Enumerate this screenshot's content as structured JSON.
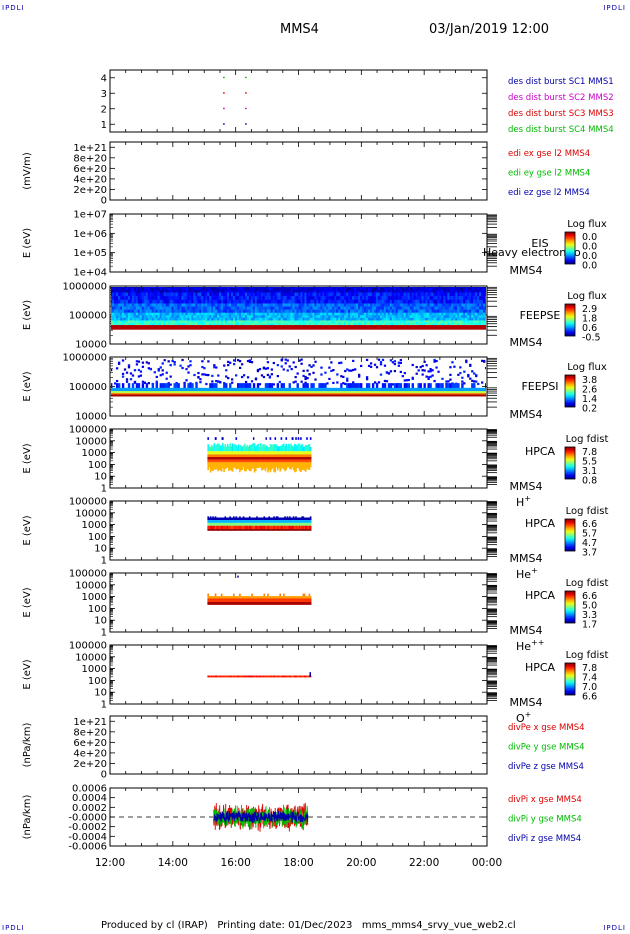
{
  "corner_left": "IPDLI",
  "corner_right": "IPDLI",
  "header": {
    "spacecraft": "MMS4",
    "date": "03/Jan/2019 12:00"
  },
  "footer": "Produced by cl (IRAP)   Printing date: 01/Dec/2023   mms_mms4_srvy_vue_web2.cl",
  "colors": {
    "mms1": "#0000aa",
    "mms2": "#cc00cc",
    "mms3": "#dd0000",
    "mms4": "#00bb00",
    "red": "#dd0000",
    "green": "#00bb00",
    "blue": "#0000aa"
  },
  "chart_data": {
    "type": "multi-panel",
    "xaxis": {
      "start_hour": 12,
      "end_hour": 24,
      "ticks": [
        {
          "h": 12,
          "label": "12:00"
        },
        {
          "h": 14,
          "label": "14:00"
        },
        {
          "h": 16,
          "label": "16:00"
        },
        {
          "h": 18,
          "label": "18:00"
        },
        {
          "h": 20,
          "label": "20:00"
        },
        {
          "h": 22,
          "label": "22:00"
        },
        {
          "h": 24,
          "label": "00:00"
        }
      ]
    },
    "panels": [
      {
        "id": "burst",
        "kind": "burst",
        "ylabel": "",
        "yrange": [
          0.5,
          4.5
        ],
        "yticks": [
          {
            "v": 1,
            "label": "1"
          },
          {
            "v": 2,
            "label": "2"
          },
          {
            "v": 3,
            "label": "3"
          },
          {
            "v": 4,
            "label": "4"
          }
        ],
        "right_labels": [
          {
            "text": "des dist burst SC1 MMS1",
            "color": "#0000aa"
          },
          {
            "text": "des dist burst SC2 MMS2",
            "color": "#cc00cc"
          },
          {
            "text": "des dist burst SC3 MMS3",
            "color": "#dd0000"
          },
          {
            "text": "des dist burst SC4 MMS4",
            "color": "#00bb00"
          }
        ],
        "marks": [
          {
            "sc": 1,
            "times": [
              15.6,
              16.3
            ]
          },
          {
            "sc": 2,
            "times": [
              15.6,
              16.3
            ]
          },
          {
            "sc": 3,
            "times": [
              15.6,
              16.3
            ]
          },
          {
            "sc": 4,
            "times": [
              15.6,
              16.3
            ]
          }
        ]
      },
      {
        "id": "edi",
        "kind": "line",
        "ylabel": "(mV/m)",
        "yrange": [
          0,
          1.1e+21
        ],
        "yticks": [
          {
            "v": 0,
            "label": "0"
          },
          {
            "v": 2e+20,
            "label": "2e+20"
          },
          {
            "v": 4e+20,
            "label": "4e+20"
          },
          {
            "v": 6e+20,
            "label": "6e+20"
          },
          {
            "v": 8e+20,
            "label": "8e+20"
          },
          {
            "v": 1e+21,
            "label": "1e+21"
          }
        ],
        "dashed_zero": true,
        "right_labels": [
          {
            "text": "edi ex gse l2 MMS4",
            "color": "#dd0000"
          },
          {
            "text": "edi ey gse l2 MMS4",
            "color": "#00bb00"
          },
          {
            "text": "edi ez gse l2 MMS4",
            "color": "#0000aa"
          }
        ]
      },
      {
        "id": "eis",
        "kind": "spec-empty",
        "ylabel": "E (eV)",
        "log": true,
        "yrange": [
          10000.0,
          10000000.0
        ],
        "yticks": [
          {
            "v": 10000.0,
            "label": "1e+04"
          },
          {
            "v": 100000.0,
            "label": "1e+05"
          },
          {
            "v": 1000000.0,
            "label": "1e+06"
          },
          {
            "v": 10000000.0,
            "label": "1e+07"
          }
        ],
        "inst": "EIS",
        "sub": "MMS4",
        "overlay": "Heavy electron to",
        "cbar": {
          "title": "Log flux",
          "labels": [
            "0.0",
            "0.0",
            "0.0",
            "0.0"
          ]
        }
      },
      {
        "id": "feepse",
        "kind": "feepse",
        "ylabel": "E (eV)",
        "log": true,
        "yrange": [
          10000.0,
          1000000.0
        ],
        "yticks": [
          {
            "v": 10000.0,
            "label": "10000"
          },
          {
            "v": 100000.0,
            "label": "100000"
          },
          {
            "v": 1000000.0,
            "label": "1000000"
          }
        ],
        "inst": "FEEPSE",
        "sub": "MMS4",
        "cbar": {
          "title": "Log flux",
          "labels": [
            "2.9",
            "1.8",
            "0.6",
            "-0.5"
          ]
        }
      },
      {
        "id": "feepsi",
        "kind": "feepsi",
        "ylabel": "E (eV)",
        "log": true,
        "yrange": [
          10000.0,
          1000000.0
        ],
        "yticks": [
          {
            "v": 10000.0,
            "label": "10000"
          },
          {
            "v": 100000.0,
            "label": "100000"
          },
          {
            "v": 1000000.0,
            "label": "1000000"
          }
        ],
        "inst": "FEEPSI",
        "sub": "MMS4",
        "cbar": {
          "title": "Log flux",
          "labels": [
            "3.8",
            "2.6",
            "1.4",
            "0.2"
          ]
        }
      },
      {
        "id": "hpca_h",
        "kind": "hpca",
        "ylabel": "E (eV)",
        "log": true,
        "yrange": [
          1,
          100000.0
        ],
        "yticks": [
          {
            "v": 1,
            "label": "1"
          },
          {
            "v": 10,
            "label": "10"
          },
          {
            "v": 100,
            "label": "100"
          },
          {
            "v": 1000,
            "label": "1000"
          },
          {
            "v": 10000,
            "label": "10000"
          },
          {
            "v": 100000,
            "label": "100000"
          }
        ],
        "inst": "HPCA",
        "sub": "MMS4",
        "species": "H",
        "sup": "+",
        "cbar": {
          "title": "Log fdist",
          "labels": [
            "7.8",
            "5.5",
            "3.1",
            "0.8"
          ]
        }
      },
      {
        "id": "hpca_he",
        "kind": "hpca",
        "ylabel": "E (eV)",
        "log": true,
        "yrange": [
          1,
          100000.0
        ],
        "yticks": [
          {
            "v": 1,
            "label": "1"
          },
          {
            "v": 10,
            "label": "10"
          },
          {
            "v": 100,
            "label": "100"
          },
          {
            "v": 1000,
            "label": "1000"
          },
          {
            "v": 10000,
            "label": "10000"
          },
          {
            "v": 100000,
            "label": "100000"
          }
        ],
        "inst": "HPCA",
        "sub": "MMS4",
        "species": "He",
        "sup": "+",
        "cbar": {
          "title": "Log fdist",
          "labels": [
            "6.6",
            "5.7",
            "4.7",
            "3.7"
          ]
        }
      },
      {
        "id": "hpca_hepp",
        "kind": "hpca",
        "ylabel": "E (eV)",
        "log": true,
        "yrange": [
          1,
          100000.0
        ],
        "yticks": [
          {
            "v": 1,
            "label": "1"
          },
          {
            "v": 10,
            "label": "10"
          },
          {
            "v": 100,
            "label": "100"
          },
          {
            "v": 1000,
            "label": "1000"
          },
          {
            "v": 10000,
            "label": "10000"
          },
          {
            "v": 100000,
            "label": "100000"
          }
        ],
        "inst": "HPCA",
        "sub": "MMS4",
        "species": "He",
        "sup": "++",
        "cbar": {
          "title": "Log fdist",
          "labels": [
            "6.6",
            "5.0",
            "3.3",
            "1.7"
          ]
        }
      },
      {
        "id": "hpca_o",
        "kind": "hpca",
        "ylabel": "E (eV)",
        "log": true,
        "yrange": [
          1,
          100000.0
        ],
        "yticks": [
          {
            "v": 1,
            "label": "1"
          },
          {
            "v": 10,
            "label": "10"
          },
          {
            "v": 100,
            "label": "100"
          },
          {
            "v": 1000,
            "label": "1000"
          },
          {
            "v": 10000,
            "label": "10000"
          },
          {
            "v": 100000,
            "label": "100000"
          }
        ],
        "inst": "HPCA",
        "sub": "MMS4",
        "species": "O",
        "sup": "+",
        "cbar": {
          "title": "Log fdist",
          "labels": [
            "7.8",
            "7.4",
            "7.0",
            "6.6"
          ]
        }
      },
      {
        "id": "divpe",
        "kind": "line",
        "ylabel": "(nPa/km)",
        "yrange": [
          0,
          1.1e+21
        ],
        "yticks": [
          {
            "v": 0,
            "label": "0"
          },
          {
            "v": 2e+20,
            "label": "2e+20"
          },
          {
            "v": 4e+20,
            "label": "4e+20"
          },
          {
            "v": 6e+20,
            "label": "6e+20"
          },
          {
            "v": 8e+20,
            "label": "8e+20"
          },
          {
            "v": 1e+21,
            "label": "1e+21"
          }
        ],
        "dashed_zero": true,
        "right_labels": [
          {
            "text": "divPe x gse MMS4",
            "color": "#dd0000"
          },
          {
            "text": "divPe y gse MMS4",
            "color": "#00bb00"
          },
          {
            "text": "divPe z gse MMS4",
            "color": "#0000aa"
          }
        ]
      },
      {
        "id": "divpi",
        "kind": "noise",
        "ylabel": "(nPa/km)",
        "yrange": [
          -0.0006,
          0.0006
        ],
        "yticks": [
          {
            "v": -0.0006,
            "label": "-0.0006"
          },
          {
            "v": -0.0004,
            "label": "-0.0004"
          },
          {
            "v": -0.0002,
            "label": "-0.0002"
          },
          {
            "v": 0,
            "label": "-0.0000"
          },
          {
            "v": 0.0002,
            "label": "0.0002"
          },
          {
            "v": 0.0004,
            "label": "0.0004"
          },
          {
            "v": 0.0006,
            "label": "0.0006"
          }
        ],
        "dashed_zero": true,
        "right_labels": [
          {
            "text": "divPi x gse MMS4",
            "color": "#dd0000"
          },
          {
            "text": "divPi y gse MMS4",
            "color": "#00bb00"
          },
          {
            "text": "divPi z gse MMS4",
            "color": "#0000aa"
          }
        ]
      }
    ]
  }
}
